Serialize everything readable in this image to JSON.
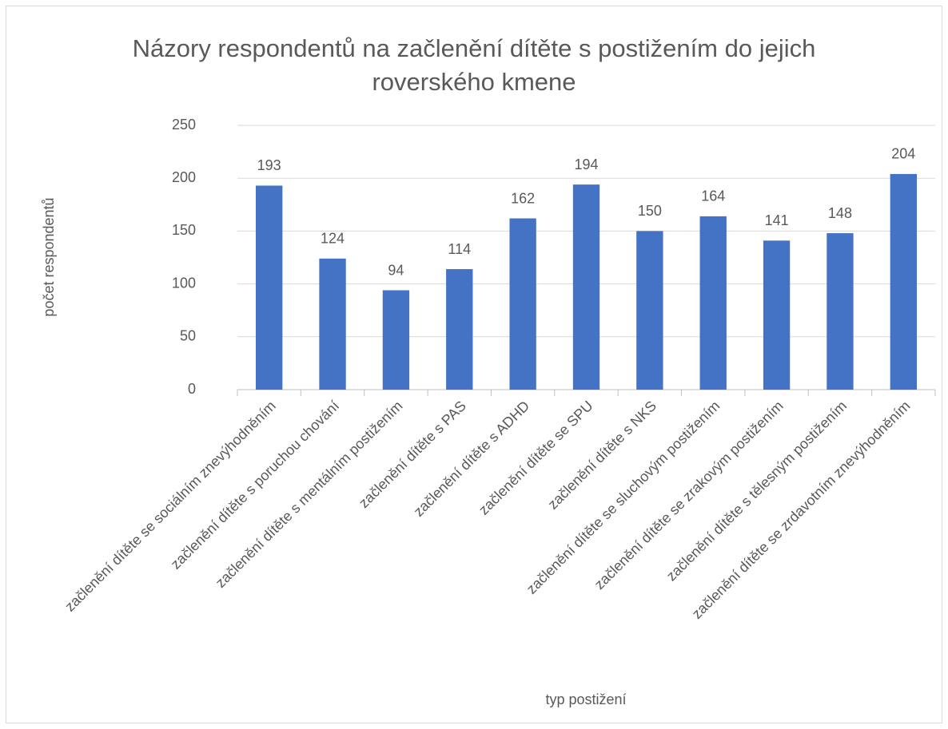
{
  "chart_data": {
    "type": "bar",
    "title": "Názory respondentů na začlenění dítěte s postižením do jejich roverského kmene",
    "x_label": "typ postižení",
    "y_label": "počet respondentů",
    "categories": [
      "začlenění dítěte se sociálním znevýhodněním",
      "začlenění dítěte s poruchou chování",
      "začlenění dítěte s mentálním postižením",
      "začlenění dítěte s PAS",
      "začlenění dítěte s ADHD",
      "začlenění dítěte se SPU",
      "začlenění dítěte s NKS",
      "začlenění dítěte se sluchovým postižením",
      "začlenění dítěte se zrakovým postižením",
      "začlenění dítěte s tělesným postižením",
      "začlenění dítěte se zrdavotním znevýhodněním"
    ],
    "values": [
      193,
      124,
      94,
      114,
      162,
      194,
      150,
      164,
      141,
      148,
      204
    ],
    "color": "#4472c4",
    "ylim": [
      0,
      250
    ],
    "yticks": [
      0,
      50,
      100,
      150,
      200,
      250
    ],
    "grid": true
  }
}
